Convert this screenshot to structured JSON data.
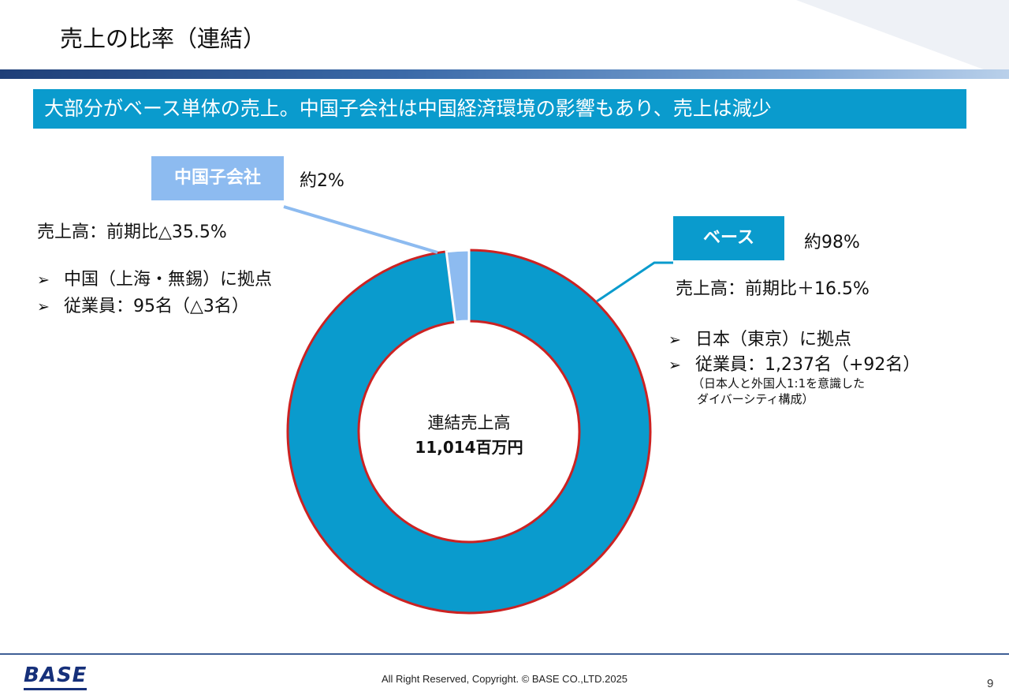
{
  "header": {
    "title": "売上の比率（連結）",
    "banner": "大部分がベース単体の売上。中国子会社は中国経済環境の影響もあり、売上は減少"
  },
  "subsidiary": {
    "label": "中国子会社",
    "share": "約2%",
    "sales": "売上高：前期比△35.5%",
    "bullets": [
      "中国（上海・無錫）に拠点",
      "従業員：95名（△3名）"
    ]
  },
  "base": {
    "label": "ベース",
    "share": "約98%",
    "sales": "売上高：前期比＋16.5%",
    "bullets": [
      "日本（東京）に拠点",
      "従業員：1,237名（+92名）"
    ],
    "note_line1": "（日本人と外国人1:1を意識した",
    "note_line2": "ダイバーシティ構成）"
  },
  "chart_data": {
    "type": "pie",
    "donut": true,
    "categories": [
      "ベース",
      "中国子会社"
    ],
    "values": [
      98,
      2
    ],
    "center_label": "連結売上高",
    "center_value": "11,014百万円",
    "colors": [
      "#0a9bcd",
      "#8dbbf0"
    ],
    "outline_color": "#cc2222"
  },
  "footer": {
    "logo": "BASE",
    "copyright": "All Right Reserved, Copyright. © BASE CO.,LTD.2025",
    "page": "9"
  }
}
